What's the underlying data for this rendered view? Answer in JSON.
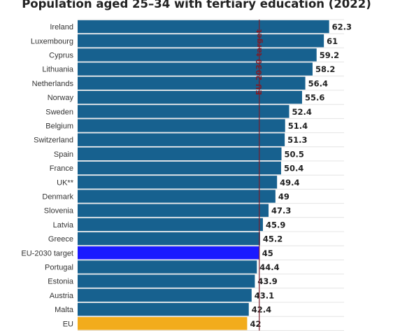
{
  "chart_data": {
    "type": "bar",
    "orientation": "horizontal",
    "title": "Population aged 25–34 with tertiary education (2022)",
    "categories": [
      "Ireland",
      "Luxembourg",
      "Cyprus",
      "Lithuania",
      "Netherlands",
      "Norway",
      "Sweden",
      "Belgium",
      "Switzerland",
      "Spain",
      "France",
      "UK**",
      "Denmark",
      "Slovenia",
      "Latvia",
      "Greece",
      "EU-2030 target",
      "Portugal",
      "Estonia",
      "Austria",
      "Malta",
      "EU"
    ],
    "values": [
      62.3,
      61,
      59.2,
      58.2,
      56.4,
      55.6,
      52.4,
      51.4,
      51.3,
      50.5,
      50.4,
      49.4,
      49,
      47.3,
      45.9,
      45.2,
      45,
      44.4,
      43.9,
      43.1,
      42.4,
      42
    ],
    "value_labels": [
      "62.3",
      "61",
      "59.2",
      "58.2",
      "56.4",
      "55.6",
      "52.4",
      "51.4",
      "51.3",
      "50.5",
      "50.4",
      "49.4",
      "49",
      "47.3",
      "45.9",
      "45.2",
      "45",
      "44.4",
      "43.9",
      "43.1",
      "42.4",
      "42"
    ],
    "xlim": [
      0,
      66
    ],
    "target_line": {
      "value": 45,
      "label": "EU-2030 target"
    },
    "grid": true,
    "colors": {
      "default": "#17618f",
      "target": "#1a1aff",
      "eu": "#f2ac1c",
      "target_line": "#7a1e2c",
      "grid": "#e4e4e4"
    },
    "highlight": {
      "EU-2030 target": "target",
      "EU": "eu"
    }
  }
}
